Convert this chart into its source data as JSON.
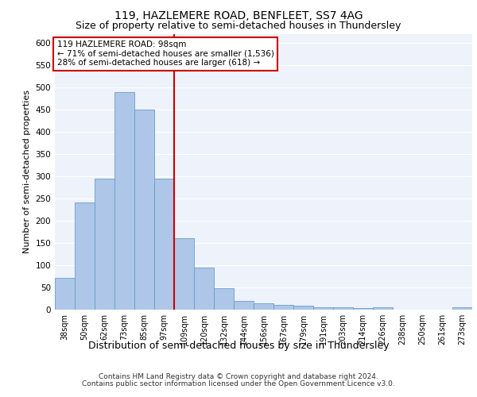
{
  "title": "119, HAZLEMERE ROAD, BENFLEET, SS7 4AG",
  "subtitle": "Size of property relative to semi-detached houses in Thundersley",
  "xlabel": "Distribution of semi-detached houses by size in Thundersley",
  "ylabel": "Number of semi-detached properties",
  "footer1": "Contains HM Land Registry data © Crown copyright and database right 2024.",
  "footer2": "Contains public sector information licensed under the Open Government Licence v3.0.",
  "categories": [
    "38sqm",
    "50sqm",
    "62sqm",
    "73sqm",
    "85sqm",
    "97sqm",
    "109sqm",
    "120sqm",
    "132sqm",
    "144sqm",
    "156sqm",
    "167sqm",
    "179sqm",
    "191sqm",
    "203sqm",
    "214sqm",
    "226sqm",
    "238sqm",
    "250sqm",
    "261sqm",
    "273sqm"
  ],
  "values": [
    72,
    240,
    295,
    488,
    450,
    295,
    160,
    95,
    48,
    20,
    15,
    10,
    9,
    5,
    5,
    4,
    5,
    0,
    0,
    0,
    5
  ],
  "bar_color": "#aec6e8",
  "bar_edgecolor": "#6a9fc8",
  "vline_x_index": 5,
  "vline_color": "#cc0000",
  "annotation_title": "119 HAZLEMERE ROAD: 98sqm",
  "annotation_line1": "← 71% of semi-detached houses are smaller (1,536)",
  "annotation_line2": "28% of semi-detached houses are larger (618) →",
  "annotation_box_facecolor": "#ffffff",
  "annotation_box_edgecolor": "#cc0000",
  "ylim": [
    0,
    620
  ],
  "yticks": [
    0,
    50,
    100,
    150,
    200,
    250,
    300,
    350,
    400,
    450,
    500,
    550,
    600
  ],
  "background_color": "#edf2fb",
  "grid_color": "#ffffff",
  "title_fontsize": 10,
  "subtitle_fontsize": 9,
  "ylabel_fontsize": 8,
  "xlabel_fontsize": 9,
  "tick_fontsize": 7,
  "ytick_fontsize": 7.5,
  "annotation_fontsize": 7.5,
  "footer_fontsize": 6.5
}
